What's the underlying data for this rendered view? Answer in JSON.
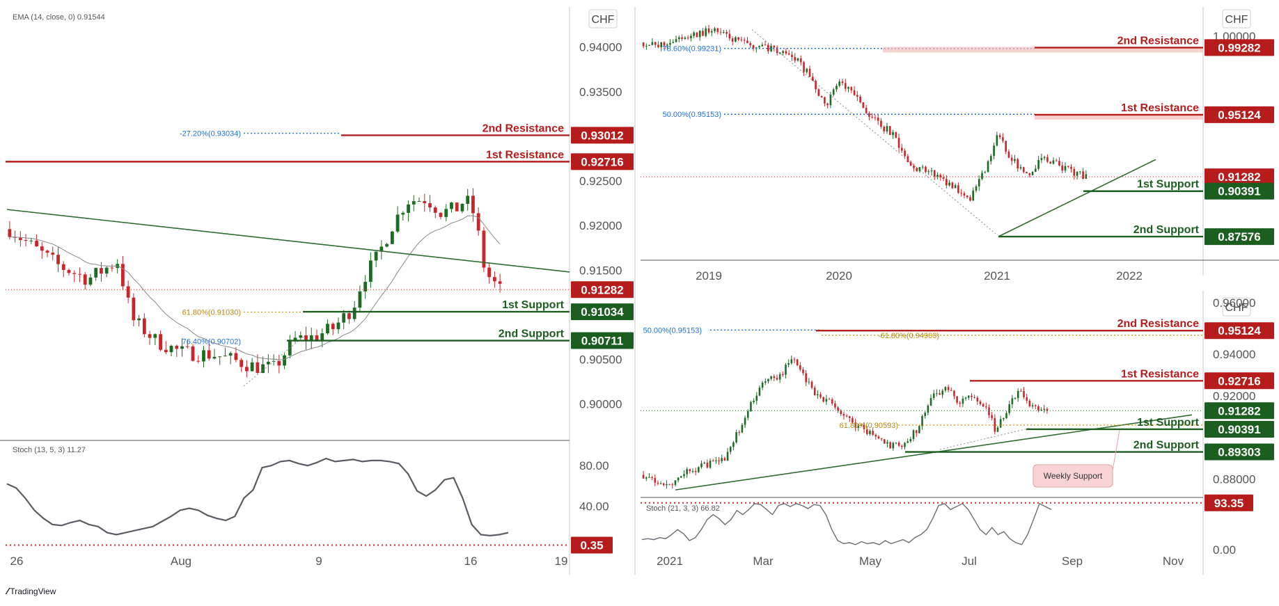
{
  "brand": {
    "logo_icon": "tradingview-logo-icon",
    "name": "TradingView"
  },
  "colors": {
    "bull": "#1e6b24",
    "bear": "#c9262b",
    "resistance": "#b71c1c",
    "support": "#1b5e20",
    "fib_blue": "#1e6fd9",
    "fib_gold": "#d4a017",
    "stoch": "#5b5b66",
    "grid": "#e6e6e6"
  },
  "chart_data": [
    {
      "id": "daily",
      "type": "candlestick",
      "currency": "CHF",
      "indicator_label": "EMA (14, close, 0)  0.91544",
      "ylim": [
        0.896,
        0.9445
      ],
      "y_ticks": [
        "0.94000",
        "0.93500",
        "0.92500",
        "0.92000",
        "0.91500",
        "0.90500",
        "0.90000"
      ],
      "x_ticks": [
        "26",
        "Aug",
        "9",
        "16",
        "19"
      ],
      "price_badges": [
        {
          "label": "2nd Resistance",
          "value": "0.93012",
          "kind": "resistance"
        },
        {
          "label": "1st Resistance",
          "value": "0.92716",
          "kind": "resistance"
        },
        {
          "label": "",
          "value": "0.91282",
          "kind": "current"
        },
        {
          "label": "1st Support",
          "value": "0.91034",
          "kind": "support"
        },
        {
          "label": "2nd Support",
          "value": "0.90711",
          "kind": "support"
        }
      ],
      "fib_labels": [
        {
          "text": "-27.20%(0.93034)",
          "value": 0.93034,
          "color": "blue"
        },
        {
          "text": "61.80%(0.91030)",
          "value": 0.9103,
          "color": "gold"
        },
        {
          "text": "76.40%(0.90702)",
          "value": 0.90702,
          "color": "blue"
        }
      ],
      "stoch": {
        "label": "Stoch (13, 5, 3)  11.27",
        "ylim": [
          0,
          100
        ],
        "y_ticks": [
          "80.00",
          "40.00"
        ],
        "badge": "0.35"
      }
    },
    {
      "id": "weekly",
      "type": "candlestick",
      "currency": "CHF",
      "ylim": [
        0.862,
        1.018
      ],
      "y_ticks": [
        "1.00000"
      ],
      "x_ticks": [
        "2019",
        "2020",
        "2021",
        "2022"
      ],
      "price_badges": [
        {
          "label": "2nd Resistance",
          "value": "0.99282",
          "kind": "resistance"
        },
        {
          "label": "1st Resistance",
          "value": "0.95124",
          "kind": "resistance"
        },
        {
          "label": "",
          "value": "0.91282",
          "kind": "current"
        },
        {
          "label": "1st Support",
          "value": "0.90391",
          "kind": "support"
        },
        {
          "label": "2nd Support",
          "value": "0.87576",
          "kind": "support"
        }
      ],
      "fib_labels": [
        {
          "text": "78.60%(0.99231)",
          "value": 0.99231,
          "color": "blue"
        },
        {
          "text": "50.00%(0.95153)",
          "value": 0.95153,
          "color": "blue"
        }
      ]
    },
    {
      "id": "h4",
      "type": "candlestick",
      "currency": "CHF",
      "ylim": [
        0.8715,
        0.967
      ],
      "y_ticks": [
        "0.94000",
        "0.92000",
        "0.88000",
        "0.96000"
      ],
      "x_ticks": [
        "2021",
        "Mar",
        "May",
        "Jul",
        "Sep",
        "Nov"
      ],
      "price_badges": [
        {
          "label": "2nd Resistance",
          "value": "0.95124",
          "kind": "resistance"
        },
        {
          "label": "1st Resistance",
          "value": "0.92716",
          "kind": "resistance"
        },
        {
          "label": "",
          "value": "0.91282",
          "kind": "current"
        },
        {
          "label": "1st Support",
          "value": "0.90391",
          "kind": "support"
        },
        {
          "label": "2nd Support",
          "value": "0.89303",
          "kind": "support"
        }
      ],
      "fib_labels": [
        {
          "text": "50.00%(0.95153)",
          "value": 0.95153,
          "color": "blue"
        },
        {
          "text": "-61.80%(0.94903)",
          "value": 0.94903,
          "color": "gold"
        },
        {
          "text": "61.80%(0.90593)",
          "value": 0.90593,
          "color": "gold"
        }
      ],
      "annotation": "Weekly Support",
      "stoch": {
        "label": "Stoch (21, 3, 3)  66.82",
        "ylim": [
          0,
          100
        ],
        "y_ticks": [
          "0.00"
        ],
        "badge": "93.35"
      }
    }
  ]
}
